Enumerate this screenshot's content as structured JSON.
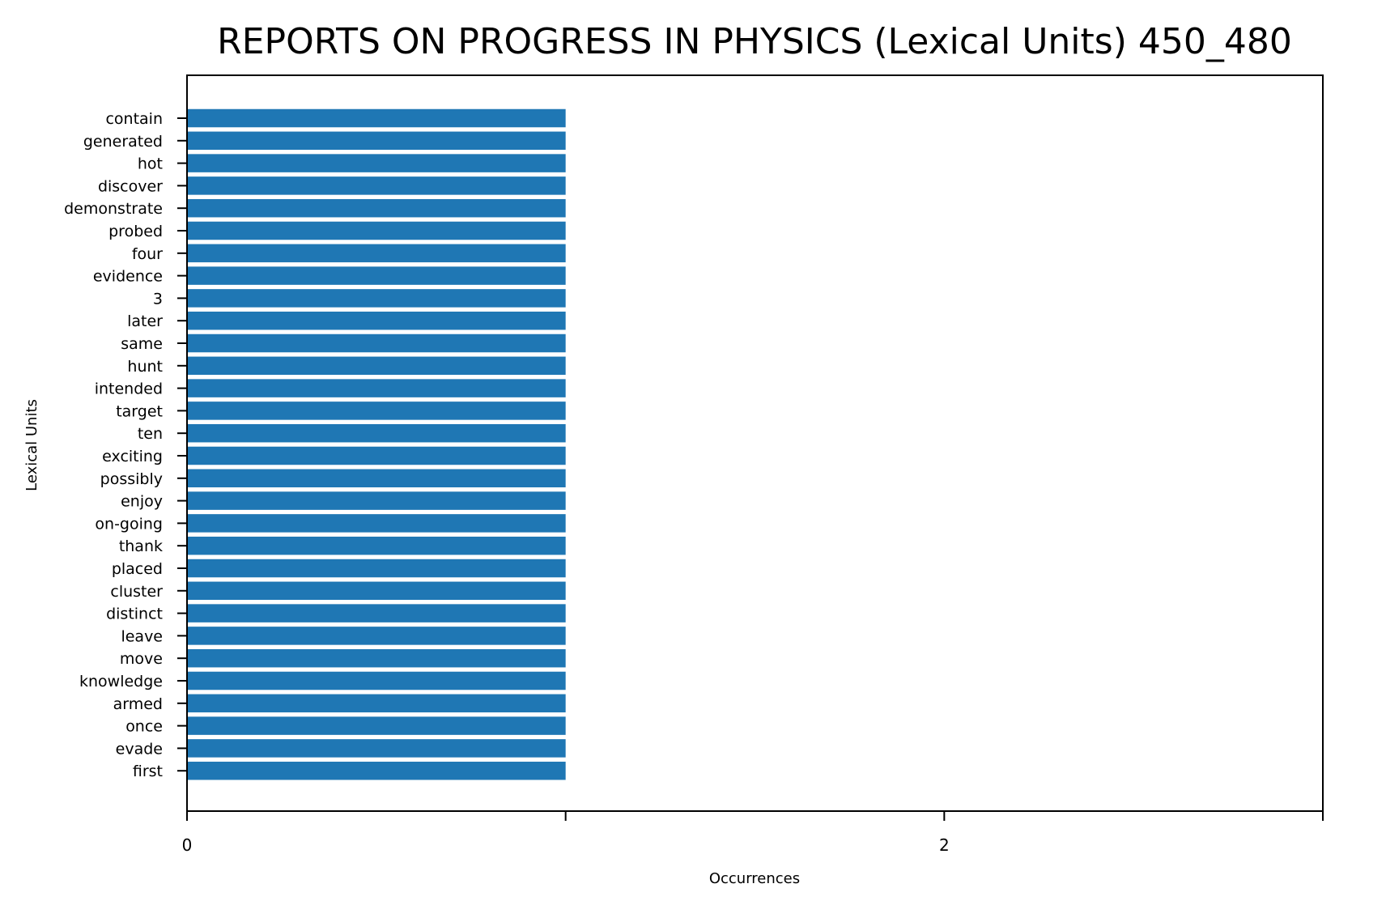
{
  "chart_data": {
    "type": "bar",
    "orientation": "horizontal",
    "title": "REPORTS ON PROGRESS IN PHYSICS (Lexical Units) 450_480",
    "xlabel": "Occurrences",
    "ylabel": "Lexical Units",
    "categories": [
      "contain",
      "generated",
      "hot",
      "discover",
      "demonstrate",
      "probed",
      "four",
      "evidence",
      "3",
      "later",
      "same",
      "hunt",
      "intended",
      "target",
      "ten",
      "exciting",
      "possibly",
      "enjoy",
      "on-going",
      "thank",
      "placed",
      "cluster",
      "distinct",
      "leave",
      "move",
      "knowledge",
      "armed",
      "once",
      "evade",
      "first"
    ],
    "values": [
      1,
      1,
      1,
      1,
      1,
      1,
      1,
      1,
      1,
      1,
      1,
      1,
      1,
      1,
      1,
      1,
      1,
      1,
      1,
      1,
      1,
      1,
      1,
      1,
      1,
      1,
      1,
      1,
      1,
      1
    ],
    "xlim": [
      0,
      3
    ],
    "x_ticks": [
      0,
      1,
      2,
      3
    ],
    "x_tick_labels": [
      "0",
      "",
      "2",
      ""
    ],
    "grid": false,
    "bar_color": "#1f77b4"
  }
}
